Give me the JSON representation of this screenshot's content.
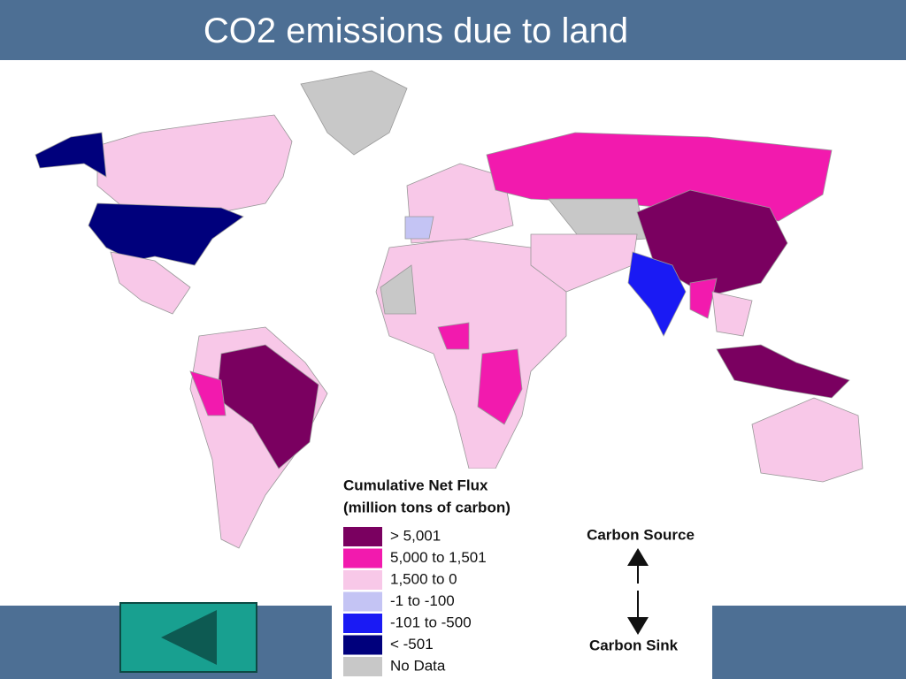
{
  "header": {
    "title": "CO2 emissions due to land"
  },
  "legend": {
    "title": [
      "Cumulative Net Flux",
      "(million tons of carbon)"
    ],
    "items": [
      {
        "label": "> 5,001",
        "color": "#7a0060"
      },
      {
        "label": "5,000 to 1,501",
        "color": "#f21aae"
      },
      {
        "label": "1,500 to 0",
        "color": "#f8c8e8"
      },
      {
        "label": "-1 to -100",
        "color": "#c4c4f4"
      },
      {
        "label": "-101 to -500",
        "color": "#1a1af4"
      },
      {
        "label": "< -501",
        "color": "#00007c"
      },
      {
        "label": "No Data",
        "color": "#c8c8c8"
      }
    ]
  },
  "scale": {
    "top": "Carbon Source",
    "bottom": "Carbon Sink"
  }
}
